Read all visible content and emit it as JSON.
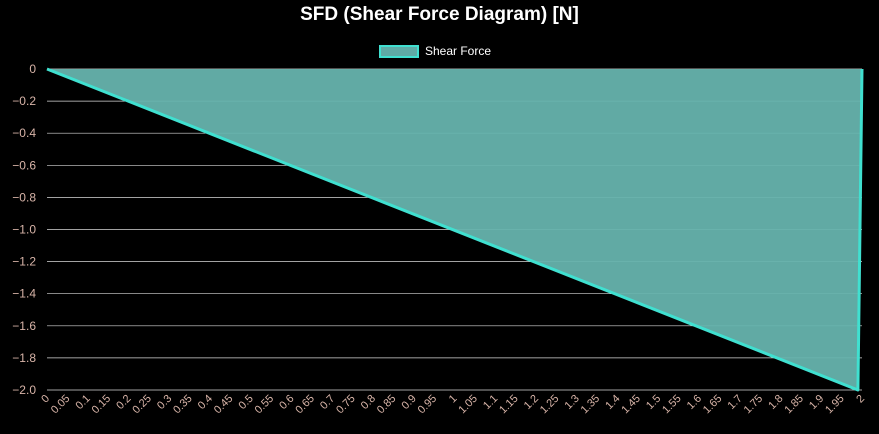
{
  "chart_data": {
    "type": "area",
    "title": "SFD (Shear Force Diagram) [N]",
    "xlabel": "",
    "ylabel": "",
    "x": [
      "0",
      "0.05",
      "0.1",
      "0.15",
      "0.2",
      "0.25",
      "0.3",
      "0.35",
      "0.4",
      "0.45",
      "0.5",
      "0.55",
      "0.6",
      "0.65",
      "0.7",
      "0.75",
      "0.8",
      "0.85",
      "0.9",
      "0.95",
      "1",
      "1.05",
      "1.1",
      "1.15",
      "1.2",
      "1.25",
      "1.3",
      "1.35",
      "1.4",
      "1.45",
      "1.5",
      "1.55",
      "1.6",
      "1.65",
      "1.7",
      "1.75",
      "1.8",
      "1.85",
      "1.9",
      "1.95",
      "2"
    ],
    "series": [
      {
        "name": "Shear Force",
        "points": [
          [
            0,
            0
          ],
          [
            1.99,
            -2.0
          ],
          [
            2,
            0
          ]
        ]
      }
    ],
    "y_ticks": [
      "0",
      "−0.2",
      "−0.4",
      "−0.6",
      "−0.8",
      "−1.0",
      "−1.2",
      "−1.4",
      "−1.6",
      "−1.8",
      "−2.0"
    ],
    "ylim": [
      -2.0,
      0
    ],
    "xlim": [
      0,
      2
    ],
    "grid": true,
    "legend_position": "top-center",
    "colors": {
      "line": "#40e0d0",
      "fill": "#66b3ad",
      "grid": "#d9d9d9",
      "tick": "#d8b4a8",
      "background": "#000000"
    }
  }
}
